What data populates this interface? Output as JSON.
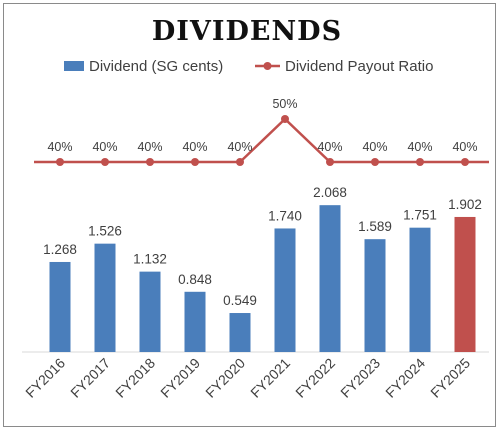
{
  "chart_data": {
    "type": "bar",
    "title": "DIVIDENDS",
    "categories": [
      "FY2016",
      "FY2017",
      "FY2018",
      "FY2019",
      "FY2020",
      "FY2021",
      "FY2022",
      "FY2023",
      "FY2024",
      "FY2025"
    ],
    "series": [
      {
        "name": "Dividend (SG cents)",
        "type": "bar",
        "values": [
          1.268,
          1.526,
          1.132,
          0.848,
          0.549,
          1.74,
          2.068,
          1.589,
          1.751,
          1.902
        ],
        "labels": [
          "1.268",
          "1.526",
          "1.132",
          "0.848",
          "0.549",
          "1.740",
          "2.068",
          "1.589",
          "1.751",
          "1.902"
        ],
        "color": "#4a7ebb",
        "highlight_color": "#c0504d",
        "highlight_category": "FY2025"
      },
      {
        "name": "Dividend Payout Ratio",
        "type": "line",
        "values": [
          40,
          40,
          40,
          40,
          40,
          50,
          40,
          40,
          40,
          40
        ],
        "labels": [
          "40%",
          "40%",
          "40%",
          "40%",
          "40%",
          "50%",
          "40%",
          "40%",
          "40%",
          "40%"
        ],
        "color": "#c0504d"
      }
    ],
    "legend": "top-center",
    "grid": false
  }
}
